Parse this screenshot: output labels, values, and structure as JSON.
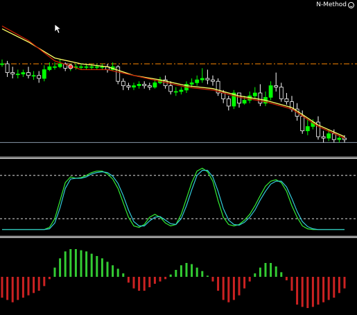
{
  "brand": {
    "label": "N-Method",
    "icon": "smiley-icon"
  },
  "colors": {
    "background": "#000000",
    "bull_candle": "#00ff00",
    "bear_candle": "#ffffff",
    "ma_fast": "#ffff66",
    "ma_slow": "#cc2200",
    "resistance_line": "#ff8800",
    "support_line": "#8899aa",
    "signal_marker": "#ff3333",
    "stoch_main": "#33ee33",
    "stoch_signal": "#33ccdd",
    "stoch_levels": "#ffffff",
    "hist_up": "#33cc33",
    "hist_down": "#cc2222",
    "separator": "#ffffff"
  },
  "chart_data": [
    {
      "type": "candlestick",
      "title": "",
      "grid": false,
      "ylim": [
        0,
        100
      ],
      "series": [
        {
          "name": "",
          "kind": "candles",
          "x": [
            0,
            1,
            2,
            3,
            4,
            5,
            6,
            7,
            8,
            9,
            10,
            11,
            12,
            13,
            14,
            15,
            16,
            17,
            18,
            19,
            20,
            21,
            22,
            23,
            24,
            25,
            26,
            27,
            28,
            29,
            30,
            31,
            32,
            33,
            34,
            35,
            36,
            37,
            38,
            39,
            40,
            41,
            42,
            43,
            44,
            45,
            46,
            47,
            48,
            49,
            50,
            51,
            52,
            53,
            54,
            55,
            56,
            57,
            58,
            59,
            60,
            61,
            62,
            63,
            64,
            65
          ],
          "open": [
            60,
            60,
            54,
            53,
            53,
            54,
            52,
            52,
            50,
            56,
            58,
            58,
            60,
            57,
            58,
            58,
            58,
            58,
            58,
            58,
            58,
            56,
            58,
            48,
            45,
            44,
            45,
            46,
            45,
            44,
            47,
            49,
            45,
            41,
            41,
            42,
            46,
            47,
            49,
            50,
            49,
            48,
            40,
            36,
            31,
            40,
            33,
            35,
            38,
            40,
            33,
            37,
            45,
            44,
            36,
            34,
            29,
            24,
            14,
            17,
            20,
            10,
            9,
            12,
            8,
            9
          ],
          "close": [
            60,
            54,
            53,
            53,
            54,
            52,
            52,
            50,
            56,
            58,
            58,
            60,
            57,
            58,
            58,
            58,
            58,
            58,
            58,
            58,
            56,
            58,
            48,
            45,
            44,
            45,
            46,
            45,
            44,
            47,
            49,
            45,
            41,
            41,
            42,
            46,
            47,
            49,
            50,
            49,
            48,
            40,
            36,
            31,
            40,
            33,
            35,
            38,
            40,
            33,
            37,
            45,
            44,
            36,
            34,
            29,
            24,
            14,
            17,
            20,
            10,
            9,
            12,
            8,
            9,
            8
          ],
          "high": [
            63,
            62,
            58,
            56,
            56,
            58,
            55,
            55,
            59,
            61,
            61,
            63,
            61,
            60,
            60,
            60,
            60,
            60,
            60,
            60,
            60,
            61,
            59,
            50,
            47,
            47,
            48,
            48,
            47,
            49,
            51,
            52,
            48,
            44,
            44,
            48,
            50,
            52,
            57,
            56,
            52,
            50,
            42,
            38,
            42,
            40,
            38,
            41,
            44,
            46,
            41,
            48,
            54,
            47,
            40,
            38,
            33,
            28,
            22,
            22,
            24,
            14,
            15,
            15,
            11,
            11
          ],
          "low": [
            58,
            51,
            50,
            50,
            51,
            50,
            49,
            47,
            48,
            55,
            56,
            57,
            55,
            55,
            56,
            56,
            56,
            56,
            56,
            56,
            54,
            55,
            46,
            42,
            42,
            42,
            43,
            43,
            42,
            43,
            46,
            43,
            39,
            38,
            39,
            40,
            44,
            45,
            47,
            46,
            45,
            38,
            33,
            28,
            29,
            30,
            32,
            33,
            36,
            31,
            31,
            35,
            41,
            34,
            32,
            27,
            21,
            12,
            11,
            15,
            8,
            6,
            7,
            6,
            6,
            6
          ]
        },
        {
          "name": "",
          "kind": "line",
          "role": "ma_fast",
          "x": [
            0,
            5,
            10,
            15,
            20,
            25,
            30,
            35,
            40,
            45,
            50,
            55,
            60,
            65
          ],
          "values": [
            84,
            75,
            64,
            60,
            58,
            52,
            49,
            45,
            43,
            38,
            35,
            30,
            18,
            10
          ]
        },
        {
          "name": "",
          "kind": "line",
          "role": "ma_slow",
          "x": [
            0,
            5,
            10,
            15,
            20,
            25,
            30,
            35,
            40,
            45,
            50,
            55,
            60,
            65
          ],
          "values": [
            86,
            76,
            62,
            56,
            56,
            52,
            48,
            44,
            42,
            37,
            34,
            29,
            17,
            9
          ]
        }
      ],
      "levels": [
        {
          "role": "resistance",
          "value": 60,
          "style": "dash-dot"
        },
        {
          "role": "support",
          "value": 6,
          "style": "solid"
        }
      ],
      "markers": [
        {
          "x": 13,
          "y": 58,
          "shape": "circle"
        }
      ]
    },
    {
      "type": "line",
      "title": "",
      "grid": false,
      "ylim": [
        0,
        100
      ],
      "levels": [
        80,
        20
      ],
      "x": [
        0,
        1,
        2,
        3,
        4,
        5,
        6,
        7,
        8,
        9,
        10,
        11,
        12,
        13,
        14,
        15,
        16,
        17,
        18,
        19,
        20,
        21,
        22,
        23,
        24,
        25,
        26,
        27,
        28,
        29,
        30,
        31,
        32,
        33,
        34,
        35,
        36,
        37,
        38,
        39,
        40,
        41,
        42,
        43,
        44,
        45,
        46,
        47,
        48,
        49,
        50,
        51,
        52,
        53,
        54,
        55,
        56,
        57,
        58,
        59,
        60,
        61,
        62,
        63,
        64,
        65
      ],
      "series": [
        {
          "name": "",
          "role": "main",
          "values": [
            5,
            5,
            5,
            5,
            5,
            5,
            5,
            5,
            5,
            8,
            20,
            45,
            70,
            78,
            76,
            77,
            80,
            84,
            86,
            86,
            82,
            75,
            62,
            42,
            22,
            10,
            8,
            12,
            22,
            26,
            22,
            14,
            10,
            12,
            26,
            48,
            70,
            86,
            90,
            85,
            72,
            45,
            22,
            12,
            10,
            12,
            18,
            26,
            38,
            52,
            65,
            72,
            74,
            70,
            58,
            38,
            22,
            10,
            6,
            5,
            5,
            5,
            5,
            5,
            5,
            5
          ]
        },
        {
          "name": "",
          "role": "signal",
          "values": [
            5,
            5,
            5,
            5,
            5,
            5,
            5,
            5,
            5,
            6,
            14,
            35,
            62,
            75,
            76,
            76,
            78,
            82,
            84,
            85,
            84,
            79,
            69,
            52,
            32,
            16,
            10,
            10,
            17,
            22,
            23,
            18,
            13,
            12,
            20,
            38,
            60,
            80,
            87,
            87,
            78,
            58,
            34,
            18,
            12,
            11,
            15,
            22,
            32,
            46,
            58,
            68,
            72,
            72,
            64,
            48,
            30,
            16,
            9,
            6,
            5,
            5,
            5,
            5,
            5,
            5
          ]
        }
      ]
    },
    {
      "type": "bar",
      "title": "",
      "grid": false,
      "ylim": [
        -30,
        30
      ],
      "x": [
        0,
        1,
        2,
        3,
        4,
        5,
        6,
        7,
        8,
        9,
        10,
        11,
        12,
        13,
        14,
        15,
        16,
        17,
        18,
        19,
        20,
        21,
        22,
        23,
        24,
        25,
        26,
        27,
        28,
        29,
        30,
        31,
        32,
        33,
        34,
        35,
        36,
        37,
        38,
        39,
        40,
        41,
        42,
        43,
        44,
        45,
        46,
        47,
        48,
        49,
        50,
        51,
        52,
        53,
        54,
        55,
        56,
        57,
        58,
        59,
        60,
        61,
        62,
        63,
        64,
        65
      ],
      "values": [
        -18,
        -20,
        -22,
        -20,
        -18,
        -16,
        -14,
        -12,
        -8,
        -2,
        8,
        16,
        22,
        24,
        24,
        23,
        22,
        20,
        18,
        16,
        13,
        10,
        7,
        3,
        -5,
        -10,
        -12,
        -12,
        -9,
        -6,
        -4,
        -2,
        2,
        6,
        10,
        12,
        11,
        8,
        5,
        1,
        -4,
        -12,
        -20,
        -22,
        -20,
        -16,
        -10,
        -4,
        3,
        8,
        12,
        12,
        9,
        4,
        -3,
        -12,
        -24,
        -26,
        -27,
        -26,
        -24,
        -22,
        -20,
        -18,
        -14,
        -10
      ]
    }
  ]
}
